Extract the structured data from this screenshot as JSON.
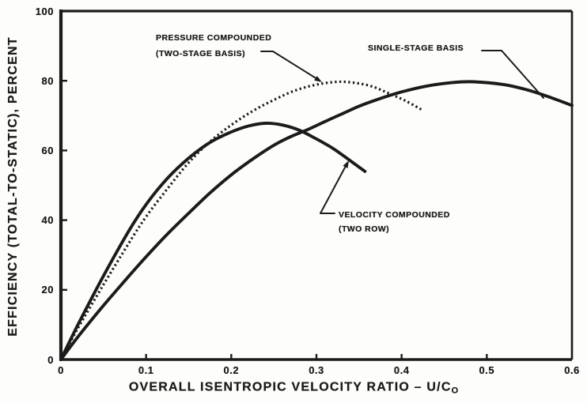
{
  "page": {
    "background": "#fdfdfb",
    "ink": "#1b1b1b"
  },
  "chart_data": {
    "type": "line",
    "title": "",
    "xlabel": "OVERALL ISENTROPIC VELOCITY RATIO – U/C",
    "xlabel_subscript": "O",
    "ylabel": "EFFICIENCY (TOTAL-TO-STATIC), PERCENT",
    "xlim": [
      0,
      0.6
    ],
    "ylim": [
      0,
      100
    ],
    "grid": false,
    "frame": true,
    "legend_position": "none (leader-line annotations on plot)",
    "x_tick_values": [
      0,
      0.1,
      0.2,
      0.3,
      0.4,
      0.5,
      0.6
    ],
    "x_tick_labels": [
      "0",
      "0.1",
      "0.2",
      "0.3",
      "0.4",
      "0.5",
      "0.6"
    ],
    "y_tick_values": [
      0,
      20,
      40,
      60,
      80,
      100
    ],
    "y_tick_labels": [
      "0",
      "20",
      "40",
      "60",
      "80",
      "100"
    ],
    "series": [
      {
        "name": "velocity-compounded-two-row",
        "label": "VELOCITY COMPOUNDED (TWO ROW)",
        "style": "solid",
        "points": [
          [
            0,
            0
          ],
          [
            0.02,
            10
          ],
          [
            0.05,
            24
          ],
          [
            0.08,
            37
          ],
          [
            0.1,
            44.5
          ],
          [
            0.125,
            52
          ],
          [
            0.15,
            57.8
          ],
          [
            0.175,
            62.3
          ],
          [
            0.2,
            65.3
          ],
          [
            0.22,
            67
          ],
          [
            0.24,
            67.8
          ],
          [
            0.26,
            67.3
          ],
          [
            0.28,
            65.8
          ],
          [
            0.3,
            63.3
          ],
          [
            0.32,
            60.5
          ],
          [
            0.34,
            57
          ],
          [
            0.357,
            54
          ]
        ]
      },
      {
        "name": "single-stage-basis",
        "label": "SINGLE-STAGE BASIS",
        "style": "solid",
        "points": [
          [
            0,
            0
          ],
          [
            0.02,
            6.5
          ],
          [
            0.05,
            15.5
          ],
          [
            0.08,
            24
          ],
          [
            0.1,
            29.5
          ],
          [
            0.125,
            36
          ],
          [
            0.15,
            42
          ],
          [
            0.175,
            47.8
          ],
          [
            0.2,
            53
          ],
          [
            0.225,
            57.5
          ],
          [
            0.25,
            61.5
          ],
          [
            0.27,
            64
          ],
          [
            0.29,
            66
          ],
          [
            0.31,
            68.3
          ],
          [
            0.33,
            70.5
          ],
          [
            0.35,
            72.7
          ],
          [
            0.37,
            74.5
          ],
          [
            0.4,
            76.8
          ],
          [
            0.43,
            78.5
          ],
          [
            0.46,
            79.5
          ],
          [
            0.485,
            79.7
          ],
          [
            0.52,
            78.9
          ],
          [
            0.55,
            77.2
          ],
          [
            0.575,
            75.2
          ],
          [
            0.6,
            72.9
          ]
        ]
      },
      {
        "name": "pressure-compounded-two-stage",
        "label": "PRESSURE COMPOUNDED (TWO-STAGE BASIS)",
        "style": "dotted",
        "points": [
          [
            0,
            0
          ],
          [
            0.02,
            9
          ],
          [
            0.05,
            21.5
          ],
          [
            0.08,
            33.5
          ],
          [
            0.1,
            41
          ],
          [
            0.125,
            49
          ],
          [
            0.15,
            56.5
          ],
          [
            0.175,
            62.5
          ],
          [
            0.2,
            67.3
          ],
          [
            0.225,
            71.3
          ],
          [
            0.25,
            74.5
          ],
          [
            0.275,
            77.2
          ],
          [
            0.3,
            78.9
          ],
          [
            0.325,
            79.7
          ],
          [
            0.345,
            79.4
          ],
          [
            0.365,
            78.4
          ],
          [
            0.385,
            76.4
          ],
          [
            0.405,
            74.2
          ],
          [
            0.425,
            71.5
          ]
        ]
      }
    ],
    "annotations": [
      {
        "series": "pressure-compounded-two-stage",
        "line1": "PRESSURE COMPOUNDED",
        "line2": "(TWO-STAGE BASIS)"
      },
      {
        "series": "single-stage-basis",
        "line1": "SINGLE-STAGE BASIS",
        "line2": ""
      },
      {
        "series": "velocity-compounded-two-row",
        "line1": "VELOCITY COMPOUNDED",
        "line2": "(TWO ROW)"
      }
    ]
  }
}
